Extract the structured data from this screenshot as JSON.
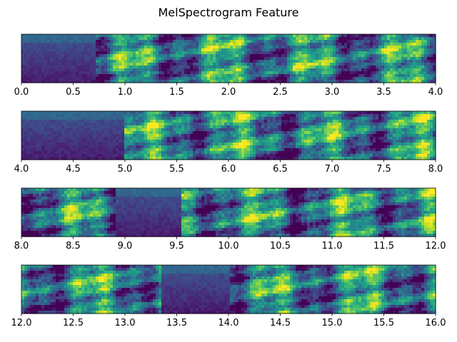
{
  "chart_data": {
    "type": "heatmap",
    "title": "MelSpectrogram Feature",
    "colormap": "viridis",
    "y_ticks": "none",
    "panels": [
      {
        "xlim": [
          0.0,
          4.0
        ],
        "tick_labels": [
          "0.0",
          "0.5",
          "1.0",
          "1.5",
          "2.0",
          "2.5",
          "3.0",
          "3.5",
          "4.0"
        ],
        "low_energy_segments": [
          [
            0.0,
            0.73
          ]
        ]
      },
      {
        "xlim": [
          4.0,
          8.0
        ],
        "tick_labels": [
          "4.0",
          "4.5",
          "5.0",
          "5.5",
          "6.0",
          "6.5",
          "7.0",
          "7.5",
          "8.0"
        ],
        "low_energy_segments": [
          [
            4.0,
            5.0
          ]
        ]
      },
      {
        "xlim": [
          8.0,
          12.0
        ],
        "tick_labels": [
          "8.0",
          "8.5",
          "9.0",
          "9.5",
          "10.0",
          "10.5",
          "11.0",
          "11.5",
          "12.0"
        ],
        "low_energy_segments": [
          [
            8.9,
            9.55
          ]
        ]
      },
      {
        "xlim": [
          12.0,
          16.0
        ],
        "tick_labels": [
          "12.0",
          "12.5",
          "13.0",
          "13.5",
          "14.0",
          "14.5",
          "15.0",
          "15.5",
          "16.0"
        ],
        "low_energy_segments": [
          [
            13.35,
            14.0
          ]
        ]
      }
    ]
  }
}
